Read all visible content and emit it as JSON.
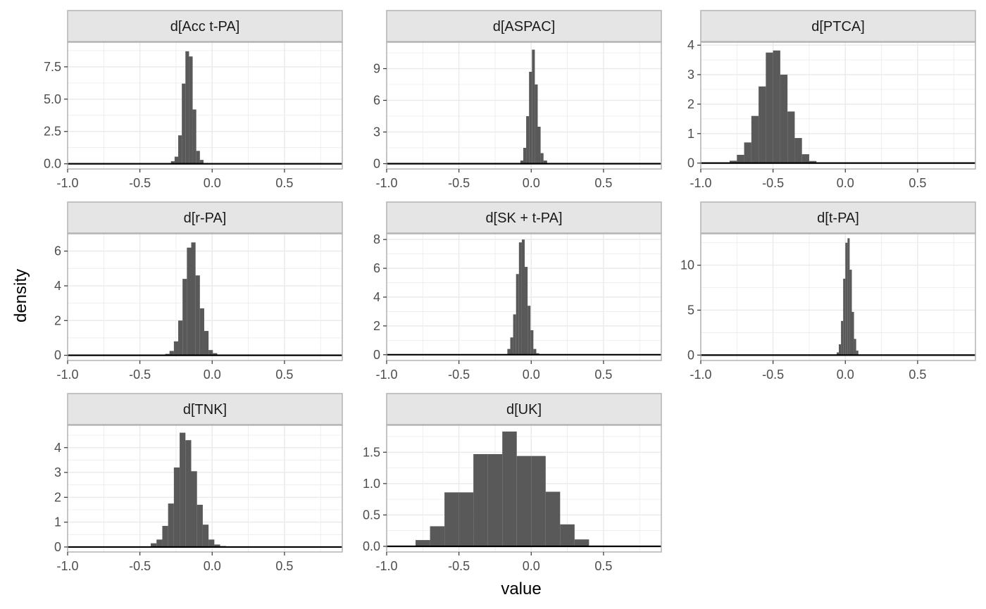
{
  "chart_data": {
    "type": "bar",
    "subtype": "faceted-histogram",
    "xlabel": "value",
    "ylabel": "density",
    "xlim": [
      -1.0,
      0.9
    ],
    "xticks": [
      -1.0,
      -0.5,
      0.0,
      0.5
    ],
    "xtick_labels": [
      "-1.0",
      "-0.5",
      "0.0",
      "0.5"
    ],
    "colors": {
      "bar": "#595959",
      "strip": "#e5e5e5",
      "strip_border": "#b3b3b3",
      "grid": "#ebebeb",
      "baseline": "#000000"
    },
    "facets": [
      {
        "title": "d[Acc t-PA]",
        "ylim": [
          -0.4,
          9.4
        ],
        "yticks": [
          0,
          2.5,
          5.0,
          7.5
        ],
        "ytick_labels": [
          "0.0",
          "2.5",
          "5.0",
          "7.5"
        ],
        "bins": [
          {
            "x0": -0.285,
            "x1": -0.26,
            "y": 0.2
          },
          {
            "x0": -0.26,
            "x1": -0.235,
            "y": 0.55
          },
          {
            "x0": -0.235,
            "x1": -0.21,
            "y": 2.2
          },
          {
            "x0": -0.21,
            "x1": -0.185,
            "y": 6.2
          },
          {
            "x0": -0.185,
            "x1": -0.16,
            "y": 8.7
          },
          {
            "x0": -0.16,
            "x1": -0.135,
            "y": 8.3
          },
          {
            "x0": -0.135,
            "x1": -0.11,
            "y": 4.2
          },
          {
            "x0": -0.11,
            "x1": -0.085,
            "y": 1.0
          },
          {
            "x0": -0.085,
            "x1": -0.06,
            "y": 0.3
          }
        ]
      },
      {
        "title": "d[ASPAC]",
        "ylim": [
          -0.5,
          11.5
        ],
        "yticks": [
          0,
          3,
          6,
          9
        ],
        "ytick_labels": [
          "0",
          "3",
          "6",
          "9"
        ],
        "bins": [
          {
            "x0": -0.075,
            "x1": -0.055,
            "y": 0.3
          },
          {
            "x0": -0.055,
            "x1": -0.035,
            "y": 1.5
          },
          {
            "x0": -0.035,
            "x1": -0.015,
            "y": 4.5
          },
          {
            "x0": -0.015,
            "x1": 0.005,
            "y": 8.7
          },
          {
            "x0": 0.005,
            "x1": 0.025,
            "y": 10.8
          },
          {
            "x0": 0.025,
            "x1": 0.045,
            "y": 7.5
          },
          {
            "x0": 0.045,
            "x1": 0.065,
            "y": 3.5
          },
          {
            "x0": 0.065,
            "x1": 0.085,
            "y": 1.0
          },
          {
            "x0": 0.085,
            "x1": 0.11,
            "y": 0.3
          }
        ]
      },
      {
        "title": "d[PTCA]",
        "ylim": [
          -0.2,
          4.1
        ],
        "yticks": [
          0,
          1,
          2,
          3,
          4
        ],
        "ytick_labels": [
          "0",
          "1",
          "2",
          "3",
          "4"
        ],
        "bins": [
          {
            "x0": -0.85,
            "x1": -0.8,
            "y": 0.02
          },
          {
            "x0": -0.8,
            "x1": -0.75,
            "y": 0.08
          },
          {
            "x0": -0.75,
            "x1": -0.7,
            "y": 0.28
          },
          {
            "x0": -0.7,
            "x1": -0.65,
            "y": 0.7
          },
          {
            "x0": -0.65,
            "x1": -0.6,
            "y": 1.6
          },
          {
            "x0": -0.6,
            "x1": -0.55,
            "y": 2.6
          },
          {
            "x0": -0.55,
            "x1": -0.5,
            "y": 3.75
          },
          {
            "x0": -0.5,
            "x1": -0.45,
            "y": 3.82
          },
          {
            "x0": -0.45,
            "x1": -0.4,
            "y": 3.0
          },
          {
            "x0": -0.4,
            "x1": -0.35,
            "y": 1.75
          },
          {
            "x0": -0.35,
            "x1": -0.3,
            "y": 0.85
          },
          {
            "x0": -0.3,
            "x1": -0.25,
            "y": 0.3
          },
          {
            "x0": -0.25,
            "x1": -0.2,
            "y": 0.07
          },
          {
            "x0": -0.2,
            "x1": -0.15,
            "y": 0.02
          }
        ]
      },
      {
        "title": "d[r-PA]",
        "ylim": [
          -0.3,
          7.0
        ],
        "yticks": [
          0,
          2,
          4,
          6
        ],
        "ytick_labels": [
          "0",
          "2",
          "4",
          "6"
        ],
        "bins": [
          {
            "x0": -0.325,
            "x1": -0.295,
            "y": 0.08
          },
          {
            "x0": -0.295,
            "x1": -0.265,
            "y": 0.25
          },
          {
            "x0": -0.265,
            "x1": -0.235,
            "y": 0.8
          },
          {
            "x0": -0.235,
            "x1": -0.205,
            "y": 2.0
          },
          {
            "x0": -0.205,
            "x1": -0.175,
            "y": 4.4
          },
          {
            "x0": -0.175,
            "x1": -0.145,
            "y": 6.2
          },
          {
            "x0": -0.145,
            "x1": -0.115,
            "y": 6.5
          },
          {
            "x0": -0.115,
            "x1": -0.085,
            "y": 4.6
          },
          {
            "x0": -0.085,
            "x1": -0.055,
            "y": 2.7
          },
          {
            "x0": -0.055,
            "x1": -0.025,
            "y": 1.4
          },
          {
            "x0": -0.025,
            "x1": 0.005,
            "y": 0.3
          },
          {
            "x0": 0.005,
            "x1": 0.035,
            "y": 0.12
          },
          {
            "x0": 0.035,
            "x1": 0.065,
            "y": 0.04
          }
        ]
      },
      {
        "title": "d[SK + t-PA]",
        "ylim": [
          -0.4,
          8.4
        ],
        "yticks": [
          0,
          2,
          4,
          6,
          8
        ],
        "ytick_labels": [
          "0",
          "2",
          "4",
          "6",
          "8"
        ],
        "bins": [
          {
            "x0": -0.165,
            "x1": -0.145,
            "y": 0.4
          },
          {
            "x0": -0.145,
            "x1": -0.125,
            "y": 1.2
          },
          {
            "x0": -0.125,
            "x1": -0.105,
            "y": 2.8
          },
          {
            "x0": -0.105,
            "x1": -0.085,
            "y": 5.6
          },
          {
            "x0": -0.085,
            "x1": -0.065,
            "y": 7.8
          },
          {
            "x0": -0.065,
            "x1": -0.045,
            "y": 8.0
          },
          {
            "x0": -0.045,
            "x1": -0.025,
            "y": 6.1
          },
          {
            "x0": -0.025,
            "x1": -0.005,
            "y": 3.4
          },
          {
            "x0": -0.005,
            "x1": 0.015,
            "y": 1.7
          },
          {
            "x0": 0.015,
            "x1": 0.035,
            "y": 0.4
          },
          {
            "x0": 0.035,
            "x1": 0.055,
            "y": 0.1
          }
        ]
      },
      {
        "title": "d[t-PA]",
        "ylim": [
          -0.6,
          13.5
        ],
        "yticks": [
          0,
          5,
          10
        ],
        "ytick_labels": [
          "0",
          "5",
          "10"
        ],
        "bins": [
          {
            "x0": -0.06,
            "x1": -0.045,
            "y": 0.3
          },
          {
            "x0": -0.045,
            "x1": -0.03,
            "y": 1.2
          },
          {
            "x0": -0.03,
            "x1": -0.015,
            "y": 3.8
          },
          {
            "x0": -0.015,
            "x1": 0.0,
            "y": 8.5
          },
          {
            "x0": 0.0,
            "x1": 0.015,
            "y": 12.5
          },
          {
            "x0": 0.015,
            "x1": 0.03,
            "y": 13.0
          },
          {
            "x0": 0.03,
            "x1": 0.045,
            "y": 9.5
          },
          {
            "x0": 0.045,
            "x1": 0.06,
            "y": 4.8
          },
          {
            "x0": 0.06,
            "x1": 0.075,
            "y": 1.8
          },
          {
            "x0": 0.075,
            "x1": 0.09,
            "y": 0.5
          }
        ]
      },
      {
        "title": "d[TNK]",
        "ylim": [
          -0.2,
          4.9
        ],
        "yticks": [
          0,
          1,
          2,
          3,
          4
        ],
        "ytick_labels": [
          "0",
          "1",
          "2",
          "3",
          "4"
        ],
        "bins": [
          {
            "x0": -0.425,
            "x1": -0.385,
            "y": 0.15
          },
          {
            "x0": -0.385,
            "x1": -0.345,
            "y": 0.3
          },
          {
            "x0": -0.345,
            "x1": -0.305,
            "y": 0.85
          },
          {
            "x0": -0.305,
            "x1": -0.265,
            "y": 1.75
          },
          {
            "x0": -0.265,
            "x1": -0.225,
            "y": 3.2
          },
          {
            "x0": -0.225,
            "x1": -0.185,
            "y": 4.6
          },
          {
            "x0": -0.185,
            "x1": -0.145,
            "y": 4.3
          },
          {
            "x0": -0.145,
            "x1": -0.105,
            "y": 3.05
          },
          {
            "x0": -0.105,
            "x1": -0.065,
            "y": 1.7
          },
          {
            "x0": -0.065,
            "x1": -0.025,
            "y": 0.9
          },
          {
            "x0": -0.025,
            "x1": 0.015,
            "y": 0.3
          },
          {
            "x0": 0.015,
            "x1": 0.055,
            "y": 0.1
          },
          {
            "x0": 0.055,
            "x1": 0.095,
            "y": 0.04
          }
        ]
      },
      {
        "title": "d[UK]",
        "ylim": [
          -0.09,
          1.93
        ],
        "yticks": [
          0.0,
          0.5,
          1.0,
          1.5
        ],
        "ytick_labels": [
          "0.0",
          "0.5",
          "1.0",
          "1.5"
        ],
        "bins": [
          {
            "x0": -0.8,
            "x1": -0.7,
            "y": 0.1
          },
          {
            "x0": -0.7,
            "x1": -0.6,
            "y": 0.32
          },
          {
            "x0": -0.6,
            "x1": -0.5,
            "y": 0.86
          },
          {
            "x0": -0.5,
            "x1": -0.4,
            "y": 0.86
          },
          {
            "x0": -0.4,
            "x1": -0.3,
            "y": 1.47
          },
          {
            "x0": -0.3,
            "x1": -0.2,
            "y": 1.47
          },
          {
            "x0": -0.2,
            "x1": -0.1,
            "y": 1.83
          },
          {
            "x0": -0.1,
            "x1": 0.0,
            "y": 1.44
          },
          {
            "x0": 0.0,
            "x1": 0.1,
            "y": 1.44
          },
          {
            "x0": 0.1,
            "x1": 0.2,
            "y": 0.87
          },
          {
            "x0": 0.2,
            "x1": 0.3,
            "y": 0.35
          },
          {
            "x0": 0.3,
            "x1": 0.4,
            "y": 0.11
          }
        ]
      }
    ]
  }
}
